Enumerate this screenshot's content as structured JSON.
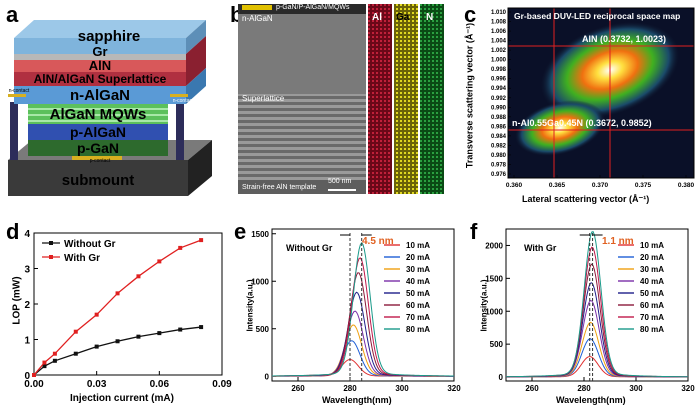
{
  "panel_a": {
    "label": "a",
    "layers": [
      "sapphire",
      "Gr",
      "AlN",
      "AlN/AlGaN Superlattice",
      "n-AlGaN",
      "AlGaN MQWs",
      "p-AlGaN",
      "p-GaN",
      "submount"
    ],
    "n_contact": "n-contact",
    "p_contact": "p-contact"
  },
  "panel_b": {
    "label": "b",
    "top_text": "p-GaN/P-AlGaN/MQWs",
    "n_text": "n-AlGaN",
    "superlattice_text": "Superlattice",
    "template_text": "Strain-free AlN template",
    "scale": "500 nm",
    "maps": [
      "Al",
      "Ga",
      "N"
    ],
    "map_colors": [
      "#b3102a",
      "#d6c80a",
      "#1f8a2e"
    ]
  },
  "panel_c": {
    "label": "c",
    "title": "Gr-based DUV-LED reciprocal space map",
    "peak_aln": "AlN (0.3732, 1.0023)",
    "peak_nalgan": "n-Al0.55Ga0.45N (0.3672, 0.9852)",
    "xlabel": "Lateral scattering vector (Å⁻¹)",
    "ylabel": "Transverse scattering vector (Å⁻¹)",
    "xticks": [
      "0.360",
      "0.365",
      "0.370",
      "0.375",
      "0.380"
    ],
    "yticks": [
      "1.010",
      "1.008",
      "1.006",
      "1.004",
      "1.002",
      "1.000",
      "0.998",
      "0.996",
      "0.994",
      "0.992",
      "0.990",
      "0.988",
      "0.986",
      "0.984",
      "0.982",
      "0.980",
      "0.978",
      "0.976"
    ]
  },
  "chart_data": [
    {
      "type": "line",
      "panel": "d",
      "xlabel": "Injection current (mA)",
      "ylabel": "LOP (mW)",
      "xlim": [
        0,
        0.09
      ],
      "ylim": [
        0,
        4
      ],
      "xticks": [
        "0.00",
        "0.03",
        "0.06",
        "0.09"
      ],
      "yticks": [
        "0",
        "1",
        "2",
        "3",
        "4"
      ],
      "x": [
        0,
        0.005,
        0.01,
        0.02,
        0.03,
        0.04,
        0.05,
        0.06,
        0.07,
        0.08
      ],
      "series": [
        {
          "name": "Without Gr",
          "color": "#111111",
          "values": [
            0,
            0.25,
            0.4,
            0.6,
            0.8,
            0.95,
            1.08,
            1.18,
            1.28,
            1.35
          ]
        },
        {
          "name": "With Gr",
          "color": "#e02020",
          "values": [
            0,
            0.35,
            0.6,
            1.22,
            1.7,
            2.3,
            2.78,
            3.2,
            3.58,
            3.8
          ]
        }
      ]
    },
    {
      "type": "line",
      "panel": "e",
      "legend_title": "Without Gr",
      "shift": "4.5 nm",
      "xlabel": "Wavelength(nm)",
      "ylabel": "Intensity(a.u.)",
      "xlim": [
        250,
        320
      ],
      "ylim": [
        -50,
        1550
      ],
      "xticks": [
        "260",
        "280",
        "300",
        "320"
      ],
      "yticks": [
        "0",
        "500",
        "1000",
        "1500"
      ],
      "peaks_start": 280,
      "peaks_end": 284.5,
      "series": [
        {
          "name": "10 mA",
          "color": "#e03030",
          "peak": 170
        },
        {
          "name": "20 mA",
          "color": "#1f5fd6",
          "peak": 360
        },
        {
          "name": "30 mA",
          "color": "#f0a010",
          "peak": 520
        },
        {
          "name": "40 mA",
          "color": "#7a2ea8",
          "peak": 660
        },
        {
          "name": "50 mA",
          "color": "#1f1f8a",
          "peak": 850
        },
        {
          "name": "60 mA",
          "color": "#8b1a3a",
          "peak": 1050
        },
        {
          "name": "70 mA",
          "color": "#c0184a",
          "peak": 1200
        },
        {
          "name": "80 mA",
          "color": "#1a9a8a",
          "peak": 1350
        }
      ]
    },
    {
      "type": "line",
      "panel": "f",
      "legend_title": "With Gr",
      "shift": "1.1 nm",
      "xlabel": "Wavelength(nm)",
      "ylabel": "Intensity(a.u.)",
      "xlim": [
        250,
        320
      ],
      "ylim": [
        -60,
        2250
      ],
      "xticks": [
        "260",
        "280",
        "300",
        "320"
      ],
      "yticks": [
        "0",
        "500",
        "1000",
        "1500",
        "2000"
      ],
      "peaks_start": 282.2,
      "peaks_end": 283.3,
      "series": [
        {
          "name": "10 mA",
          "color": "#e03030",
          "peak": 300
        },
        {
          "name": "20 mA",
          "color": "#1f5fd6",
          "peak": 560
        },
        {
          "name": "30 mA",
          "color": "#f0a010",
          "peak": 800
        },
        {
          "name": "40 mA",
          "color": "#7a2ea8",
          "peak": 1120
        },
        {
          "name": "50 mA",
          "color": "#1f1f8a",
          "peak": 1380
        },
        {
          "name": "60 mA",
          "color": "#8b1a3a",
          "peak": 1650
        },
        {
          "name": "70 mA",
          "color": "#c0184a",
          "peak": 1900
        },
        {
          "name": "80 mA",
          "color": "#1a9a8a",
          "peak": 2130
        }
      ]
    }
  ]
}
